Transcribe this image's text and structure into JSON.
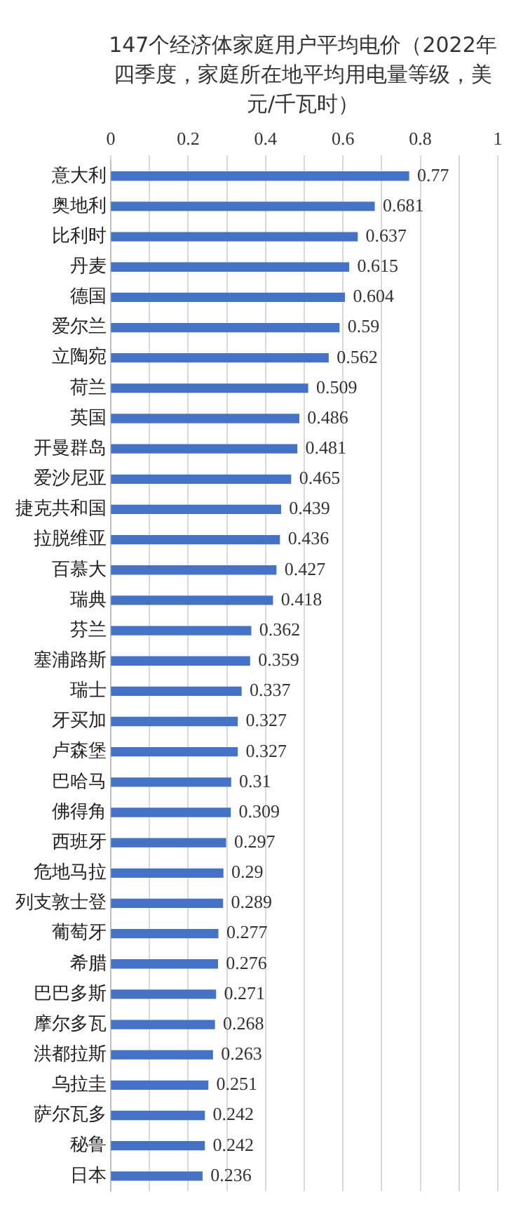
{
  "chart_data": {
    "type": "bar",
    "orientation": "horizontal",
    "title": "147个经济体家庭用户平均电价（2022年四季度，家庭所在地平均用电量等级，美元/千瓦时）",
    "categories": [
      "意大利",
      "奥地利",
      "比利时",
      "丹麦",
      "德国",
      "爱尔兰",
      "立陶宛",
      "荷兰",
      "英国",
      "开曼群岛",
      "爱沙尼亚",
      "捷克共和国",
      "拉脱维亚",
      "百慕大",
      "瑞典",
      "芬兰",
      "塞浦路斯",
      "瑞士",
      "牙买加",
      "卢森堡",
      "巴哈马",
      "佛得角",
      "西班牙",
      "危地马拉",
      "列支敦士登",
      "葡萄牙",
      "希腊",
      "巴巴多斯",
      "摩尔多瓦",
      "洪都拉斯",
      "乌拉圭",
      "萨尔瓦多",
      "秘鲁",
      "日本"
    ],
    "values": [
      0.77,
      0.681,
      0.637,
      0.615,
      0.604,
      0.59,
      0.562,
      0.509,
      0.486,
      0.481,
      0.465,
      0.439,
      0.436,
      0.427,
      0.418,
      0.362,
      0.359,
      0.337,
      0.327,
      0.327,
      0.31,
      0.309,
      0.297,
      0.29,
      0.289,
      0.277,
      0.276,
      0.271,
      0.268,
      0.263,
      0.251,
      0.242,
      0.242,
      0.236
    ],
    "color": "#4472c4",
    "data_labels": true,
    "grid": "x",
    "xlim": [
      0,
      1
    ],
    "xticks": [
      0,
      {
        "value": 0.1,
        "label": null
      },
      0.2,
      {
        "value": 0.3,
        "label": null
      },
      0.4,
      {
        "value": 0.5,
        "label": null
      },
      0.6,
      {
        "value": 0.7,
        "label": null
      },
      0.8,
      {
        "value": 0.9,
        "label": null
      },
      1
    ]
  }
}
